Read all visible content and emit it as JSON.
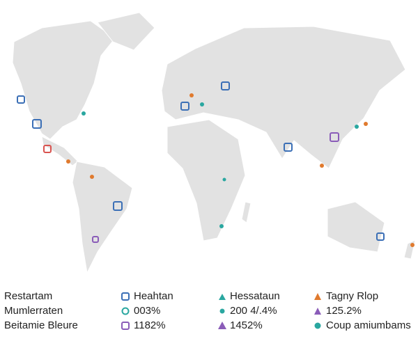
{
  "legend": {
    "rows": [
      [
        "Restartam",
        "Heahtan",
        "Hessataun",
        "Tagny Rlop"
      ],
      [
        "Mumlerraten",
        "003%",
        "200 4/.4%",
        "125.2%"
      ],
      [
        "Beitamie Bleure",
        "1182%",
        "1452%",
        "Coup amiumbams"
      ]
    ]
  }
}
